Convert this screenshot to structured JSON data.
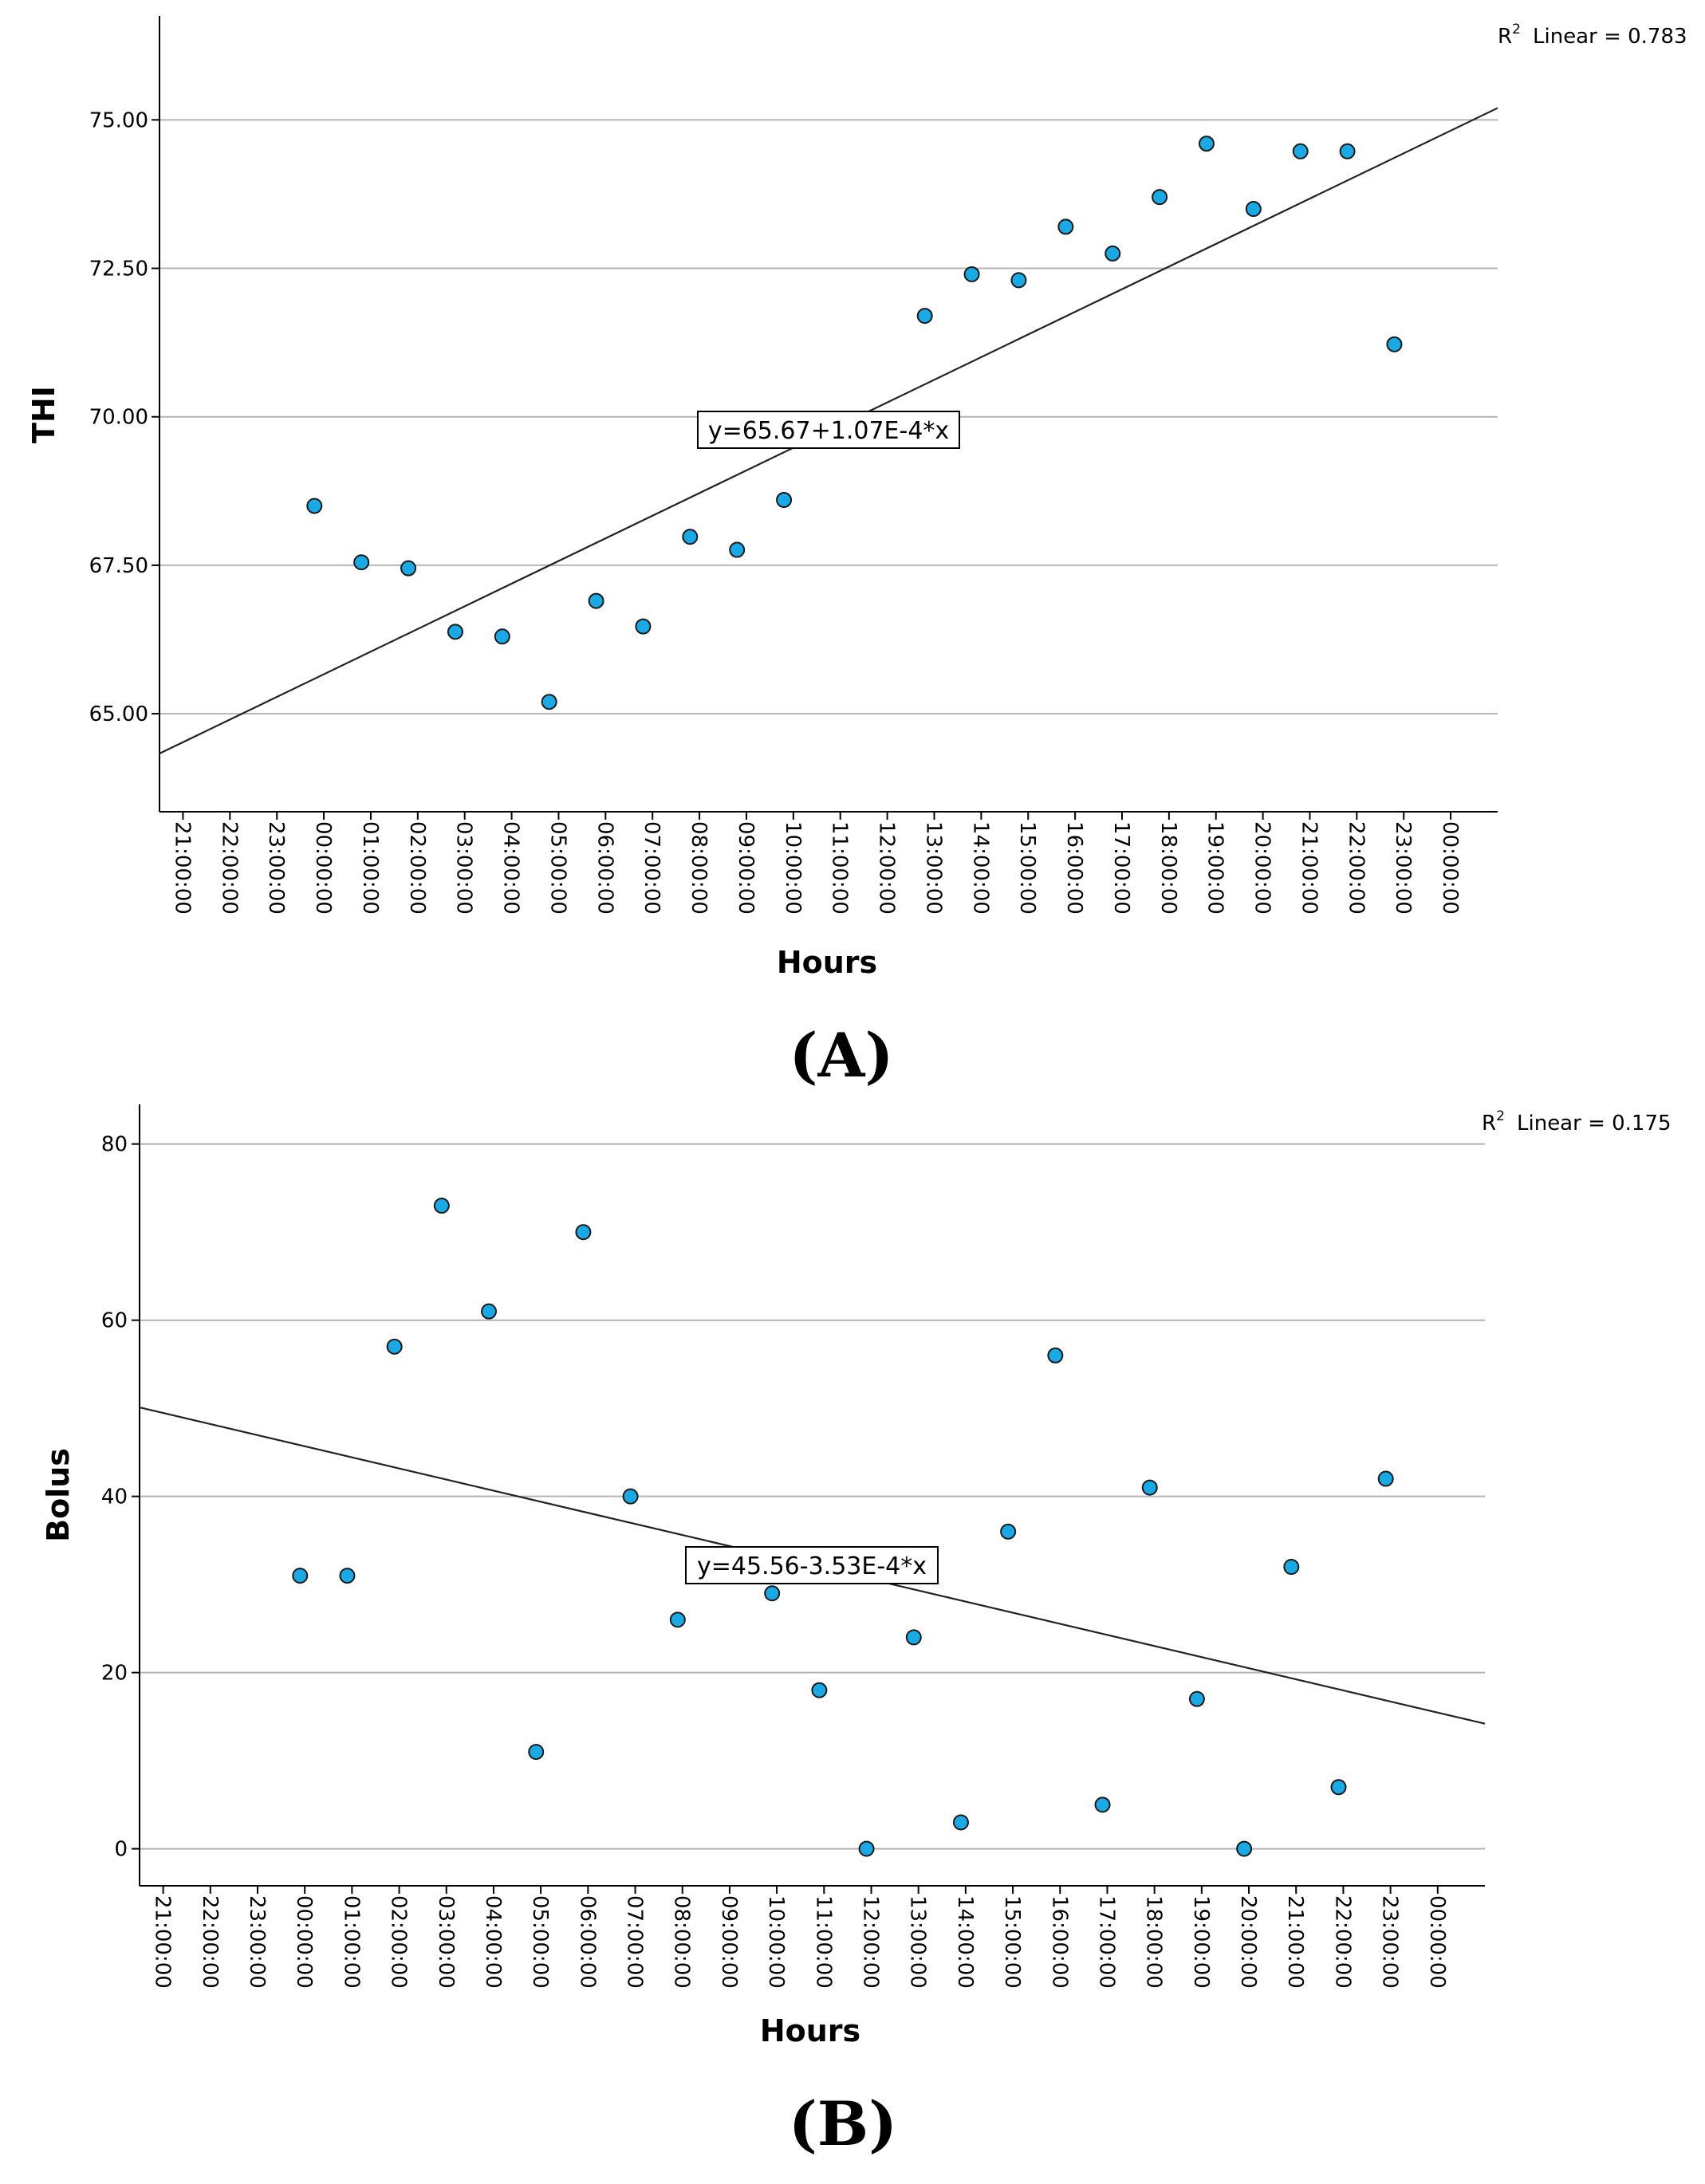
{
  "chart_data": [
    {
      "type": "scatter",
      "panel_label": "(A)",
      "xlabel": "Hours",
      "ylabel": "THI",
      "x_tick_labels": [
        "21:00:00",
        "22:00:00",
        "23:00:00",
        "00:00:00",
        "01:00:00",
        "02:00:00",
        "03:00:00",
        "04:00:00",
        "05:00:00",
        "06:00:00",
        "07:00:00",
        "08:00:00",
        "09:00:00",
        "10:00:00",
        "11:00:00",
        "12:00:00",
        "13:00:00",
        "14:00:00",
        "15:00:00",
        "16:00:00",
        "17:00:00",
        "18:00:00",
        "19:00:00",
        "20:00:00",
        "21:00:00",
        "22:00:00",
        "23:00:00",
        "00:00:00"
      ],
      "xlim": [
        0,
        28.5
      ],
      "ylim": [
        63.35,
        76.75
      ],
      "y_ticks": [
        65,
        67.5,
        70,
        72.5,
        75
      ],
      "y_tick_labels": [
        "65.00",
        "67.50",
        "70.00",
        "72.50",
        "75.00"
      ],
      "points": [
        {
          "x": 3.3,
          "y": 68.5
        },
        {
          "x": 4.3,
          "y": 67.55
        },
        {
          "x": 5.3,
          "y": 67.45
        },
        {
          "x": 6.3,
          "y": 66.38
        },
        {
          "x": 7.3,
          "y": 66.3
        },
        {
          "x": 8.3,
          "y": 65.2
        },
        {
          "x": 9.3,
          "y": 66.9
        },
        {
          "x": 10.3,
          "y": 66.47
        },
        {
          "x": 11.3,
          "y": 67.98
        },
        {
          "x": 12.3,
          "y": 67.76
        },
        {
          "x": 13.3,
          "y": 68.6
        },
        {
          "x": 16.3,
          "y": 71.7
        },
        {
          "x": 17.3,
          "y": 72.4
        },
        {
          "x": 18.3,
          "y": 72.3
        },
        {
          "x": 19.3,
          "y": 73.2
        },
        {
          "x": 20.3,
          "y": 72.75
        },
        {
          "x": 21.3,
          "y": 73.7
        },
        {
          "x": 22.3,
          "y": 74.6
        },
        {
          "x": 23.3,
          "y": 73.5
        },
        {
          "x": 24.3,
          "y": 74.47
        },
        {
          "x": 25.3,
          "y": 74.47
        },
        {
          "x": 26.3,
          "y": 71.22
        }
      ],
      "fit_line": {
        "y_start": 64.33,
        "y_end": 75.2
      },
      "equation": "y=65.67+1.07E-4*x",
      "r2_label": "Linear = 0.783",
      "colors": {
        "point_fill": "#1ba9e6",
        "point_stroke": "#1a1a1a",
        "grid": "#b4b4b4",
        "fit": "#222222"
      }
    },
    {
      "type": "scatter",
      "panel_label": "(B)",
      "xlabel": "Hours",
      "ylabel": "Bolus",
      "x_tick_labels": [
        "21:00:00",
        "22:00:00",
        "23:00:00",
        "00:00:00",
        "01:00:00",
        "02:00:00",
        "03:00:00",
        "04:00:00",
        "05:00:00",
        "06:00:00",
        "07:00:00",
        "08:00:00",
        "09:00:00",
        "10:00:00",
        "11:00:00",
        "12:00:00",
        "13:00:00",
        "14:00:00",
        "15:00:00",
        "16:00:00",
        "17:00:00",
        "18:00:00",
        "19:00:00",
        "20:00:00",
        "21:00:00",
        "22:00:00",
        "23:00:00",
        "00:00:00"
      ],
      "xlim": [
        0,
        28.5
      ],
      "ylim": [
        -4.2,
        84.5
      ],
      "y_ticks": [
        0,
        20,
        40,
        60,
        80
      ],
      "y_tick_labels": [
        "0",
        "20",
        "40",
        "60",
        "80"
      ],
      "points": [
        {
          "x": 3.4,
          "y": 31
        },
        {
          "x": 4.4,
          "y": 31
        },
        {
          "x": 5.4,
          "y": 57
        },
        {
          "x": 6.4,
          "y": 73
        },
        {
          "x": 7.4,
          "y": 61
        },
        {
          "x": 8.4,
          "y": 11
        },
        {
          "x": 9.4,
          "y": 70
        },
        {
          "x": 10.4,
          "y": 40
        },
        {
          "x": 11.4,
          "y": 26
        },
        {
          "x": 13.4,
          "y": 29
        },
        {
          "x": 14.4,
          "y": 18
        },
        {
          "x": 15.4,
          "y": 0
        },
        {
          "x": 16.4,
          "y": 24
        },
        {
          "x": 17.4,
          "y": 3
        },
        {
          "x": 18.4,
          "y": 36
        },
        {
          "x": 19.4,
          "y": 56
        },
        {
          "x": 20.4,
          "y": 5
        },
        {
          "x": 21.4,
          "y": 41
        },
        {
          "x": 22.4,
          "y": 17
        },
        {
          "x": 23.4,
          "y": 0
        },
        {
          "x": 24.4,
          "y": 32
        },
        {
          "x": 25.4,
          "y": 7
        },
        {
          "x": 26.4,
          "y": 42
        }
      ],
      "fit_line": {
        "y_start": 50.1,
        "y_end": 14.2
      },
      "equation": "y=45.56-3.53E-4*x",
      "r2_label": "Linear = 0.175",
      "colors": {
        "point_fill": "#1ba9e6",
        "point_stroke": "#1a1a1a",
        "grid": "#b4b4b4",
        "fit": "#222222"
      }
    }
  ]
}
